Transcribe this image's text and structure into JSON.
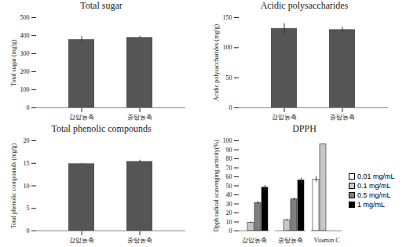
{
  "chart_data": [
    {
      "type": "bar",
      "title": "Total sugar",
      "ylabel": "Total sugar (mg/g)",
      "categories": [
        "감압농축",
        "중탕농축"
      ],
      "values": [
        378,
        390
      ],
      "errors": [
        18,
        6
      ],
      "color": "#555555",
      "ylim": [
        0,
        500
      ],
      "yticks": [
        0,
        100,
        200,
        300,
        400,
        500
      ]
    },
    {
      "type": "bar",
      "title": "Acidic polysaccharides",
      "ylabel": "Acidic polysaccharides (mg/g)",
      "categories": [
        "감압농축",
        "중탕농축"
      ],
      "values": [
        132,
        130
      ],
      "errors": [
        8,
        4
      ],
      "color": "#555555",
      "ylim": [
        0,
        150
      ],
      "yticks": [
        0,
        50,
        100,
        150
      ]
    },
    {
      "type": "bar",
      "title": "Total phenolic compounds",
      "ylabel": "Total phenolic compounds (mg/g)",
      "categories": [
        "감압농축",
        "중탕농축"
      ],
      "values": [
        14.9,
        15.4
      ],
      "errors": [
        0.1,
        0.3
      ],
      "color": "#555555",
      "ylim": [
        0,
        20
      ],
      "yticks": [
        0,
        5,
        10,
        15,
        20
      ]
    },
    {
      "type": "bar",
      "title": "DPPH",
      "ylabel": "Dpph radical scavenging activity(%)",
      "categories": [
        "감압농축",
        "중탕농축",
        "Vitamin C"
      ],
      "series": [
        {
          "name": "0.01 mg/mL",
          "color": "#ffffff",
          "values": [
            null,
            null,
            57
          ],
          "errors": [
            null,
            null,
            3
          ]
        },
        {
          "name": "0.1 mg/mL",
          "color": "#c8c8c8",
          "values": [
            9,
            12,
            96
          ],
          "errors": [
            1,
            1,
            0.5
          ]
        },
        {
          "name": "0.5 mg/mL",
          "color": "#7f7f7f",
          "values": [
            31,
            35,
            null
          ],
          "errors": [
            1.5,
            1.5,
            null
          ]
        },
        {
          "name": "1 mg/mL",
          "color": "#000000",
          "values": [
            48,
            56,
            null
          ],
          "errors": [
            2.5,
            2.5,
            null
          ]
        }
      ],
      "ylim": [
        0,
        100
      ],
      "yticks": [
        0,
        10,
        20,
        30,
        40,
        50,
        60,
        70,
        80,
        90,
        100
      ],
      "legend": "right"
    }
  ]
}
